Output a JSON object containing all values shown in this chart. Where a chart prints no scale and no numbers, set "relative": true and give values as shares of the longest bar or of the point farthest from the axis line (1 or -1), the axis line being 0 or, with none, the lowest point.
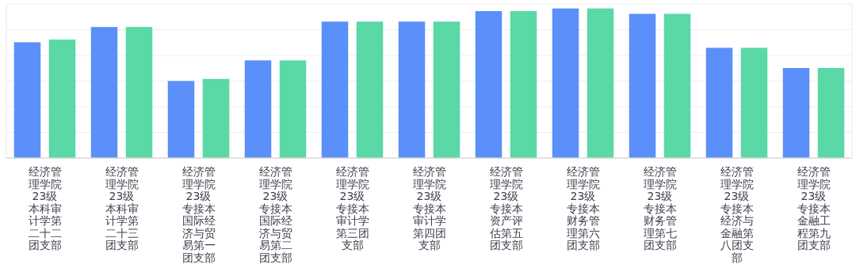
{
  "chart_data": {
    "type": "bar",
    "relative": true,
    "grid": "y",
    "categories": [
      "经济管理学院23级本科审计学第二十二团支部",
      "经济管理学院23级本科审计学第二十三团支部",
      "经济管理学院23级专接本国际经济与贸易第一团支部",
      "经济管理学院23级专接本国际经济与贸易第二团支部",
      "经济管理学院23级专接本审计学第三团支部",
      "经济管理学院23级专接本审计学第四团支部",
      "经济管理学院23级专接本资产评估第五团支部",
      "经济管理学院23级专接本财务管理第六团支部",
      "经济管理学院23级专接本财务管理第七团支部",
      "经济管理学院23级专接本经济与金融第八团支部",
      "经济管理学院23级专接本金融工程第九团支部"
    ],
    "series": [
      {
        "color": "#5b8ff9",
        "values": [
          0.774,
          0.876,
          0.515,
          0.653,
          0.912,
          0.912,
          0.982,
          1,
          0.964,
          0.737,
          0.602
        ]
      },
      {
        "color": "#5ad8a6",
        "values": [
          0.792,
          0.876,
          0.529,
          0.653,
          0.912,
          0.912,
          0.982,
          1,
          0.964,
          0.737,
          0.602
        ]
      }
    ]
  }
}
